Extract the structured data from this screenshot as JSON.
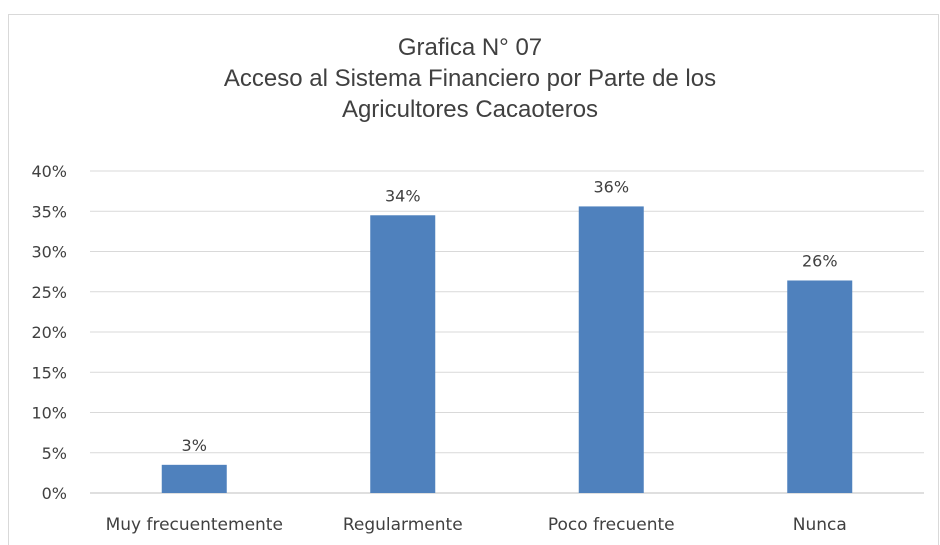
{
  "chart_data": {
    "type": "bar",
    "title": [
      "Grafica N° 07",
      "Acceso al Sistema Financiero por Parte de los",
      "Agricultores Cacaoteros"
    ],
    "categories": [
      "Muy frecuentemente",
      "Regularmente",
      "Poco frecuente",
      "Nunca"
    ],
    "values": [
      3.5,
      34.5,
      35.6,
      26.4
    ],
    "data_labels": [
      "3%",
      "34%",
      "36%",
      "26%"
    ],
    "ylim": [
      0,
      40
    ],
    "yticks": [
      "0%",
      "5%",
      "10%",
      "15%",
      "20%",
      "25%",
      "30%",
      "35%",
      "40%"
    ],
    "grid": true,
    "legend": "none",
    "bar_color": "#4f81bd"
  }
}
